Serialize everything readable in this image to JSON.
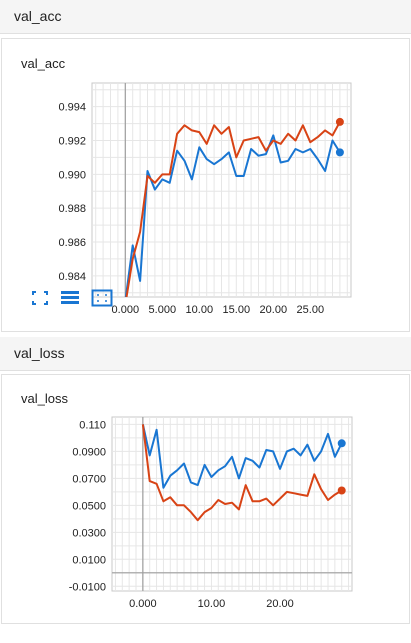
{
  "sections": [
    {
      "header": "val_acc",
      "card_title": "val_acc",
      "chart_data": {
        "type": "line",
        "title": "val_acc",
        "xlim": [
          -4.5,
          30.5
        ],
        "ylim": [
          0.98275,
          0.9954
        ],
        "x_ticks": [
          0,
          5,
          10,
          15,
          20,
          25
        ],
        "x_tick_labels": [
          "0.000",
          "5.000",
          "10.00",
          "15.00",
          "20.00",
          "25.00"
        ],
        "y_ticks": [
          0.984,
          0.986,
          0.988,
          0.99,
          0.992,
          0.994
        ],
        "y_tick_labels": [
          "0.984",
          "0.986",
          "0.988",
          "0.990",
          "0.992",
          "0.994"
        ],
        "series": [
          {
            "name": "blue run",
            "color": "#1976d2",
            "x": [
              0,
              1,
              2,
              3,
              4,
              5,
              6,
              7,
              8,
              9,
              10,
              11,
              12,
              13,
              14,
              15,
              16,
              17,
              18,
              19,
              20,
              21,
              22,
              23,
              24,
              25,
              26,
              27,
              28,
              29
            ],
            "y": [
              0.9825,
              0.9858,
              0.9837,
              0.9902,
              0.9891,
              0.9897,
              0.9895,
              0.9914,
              0.9908,
              0.9897,
              0.9916,
              0.9909,
              0.9906,
              0.9909,
              0.9913,
              0.9899,
              0.9899,
              0.9915,
              0.9911,
              0.9912,
              0.9923,
              0.9907,
              0.9908,
              0.9915,
              0.9913,
              0.9915,
              0.9909,
              0.9902,
              0.992,
              0.9913
            ]
          },
          {
            "name": "red run",
            "color": "#d84315",
            "x": [
              0,
              1,
              2,
              3,
              4,
              5,
              6,
              7,
              8,
              9,
              10,
              11,
              12,
              13,
              14,
              15,
              16,
              17,
              18,
              19,
              20,
              21,
              22,
              23,
              24,
              25,
              26,
              27,
              28,
              29
            ],
            "y": [
              0.9823,
              0.985,
              0.9866,
              0.9899,
              0.9895,
              0.99,
              0.99,
              0.9924,
              0.9929,
              0.9926,
              0.9925,
              0.9918,
              0.9929,
              0.9924,
              0.9928,
              0.991,
              0.992,
              0.9921,
              0.9922,
              0.9914,
              0.992,
              0.9918,
              0.9924,
              0.992,
              0.9929,
              0.9919,
              0.9922,
              0.9926,
              0.9923,
              0.9931
            ]
          }
        ]
      }
    },
    {
      "header": "val_loss",
      "card_title": "val_loss",
      "chart_data": {
        "type": "line",
        "title": "val_loss",
        "xlim": [
          -4.5,
          30.5
        ],
        "ylim": [
          -0.0135,
          0.1155
        ],
        "x_ticks": [
          0,
          10,
          20
        ],
        "x_tick_labels": [
          "0.000",
          "10.00",
          "20.00"
        ],
        "y_ticks": [
          -0.01,
          0.01,
          0.03,
          0.05,
          0.07,
          0.09,
          0.11
        ],
        "y_tick_labels": [
          "-0.0100",
          "0.0100",
          "0.0300",
          "0.0500",
          "0.0700",
          "0.0900",
          "0.110"
        ],
        "series": [
          {
            "name": "blue run",
            "color": "#1976d2",
            "x": [
              0,
              1,
              2,
              3,
              4,
              5,
              6,
              7,
              8,
              9,
              10,
              11,
              12,
              13,
              14,
              15,
              16,
              17,
              18,
              19,
              20,
              21,
              22,
              23,
              24,
              25,
              26,
              27,
              28,
              29
            ],
            "y": [
              0.11,
              0.087,
              0.106,
              0.063,
              0.072,
              0.076,
              0.081,
              0.067,
              0.065,
              0.08,
              0.071,
              0.076,
              0.079,
              0.086,
              0.07,
              0.085,
              0.083,
              0.078,
              0.091,
              0.09,
              0.077,
              0.09,
              0.092,
              0.087,
              0.095,
              0.083,
              0.09,
              0.103,
              0.086,
              0.096
            ]
          },
          {
            "name": "red run",
            "color": "#d84315",
            "x": [
              0,
              1,
              2,
              3,
              4,
              5,
              6,
              7,
              8,
              9,
              10,
              11,
              12,
              13,
              14,
              15,
              16,
              17,
              18,
              19,
              20,
              21,
              22,
              23,
              24,
              25,
              26,
              27,
              28,
              29
            ],
            "y": [
              0.11,
              0.068,
              0.066,
              0.053,
              0.056,
              0.05,
              0.05,
              0.045,
              0.039,
              0.045,
              0.048,
              0.054,
              0.051,
              0.052,
              0.047,
              0.065,
              0.053,
              0.053,
              0.055,
              0.05,
              0.055,
              0.06,
              0.059,
              0.058,
              0.057,
              0.073,
              0.062,
              0.054,
              0.058,
              0.061
            ]
          }
        ]
      }
    }
  ],
  "toolbar": {
    "icons": [
      "fit-domain-icon",
      "toggle-log-scale-icon",
      "download-icon"
    ],
    "color": "#1976d2"
  }
}
